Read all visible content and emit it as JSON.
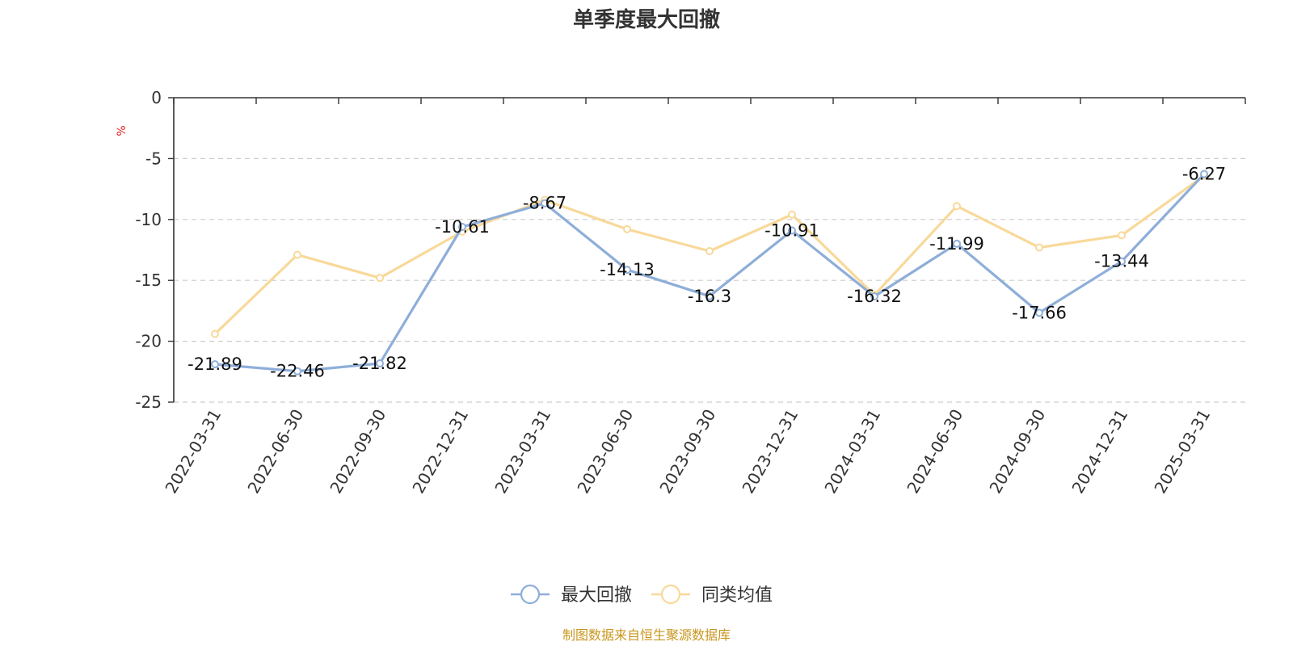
{
  "chart_data": {
    "type": "line",
    "title": "单季度最大回撤",
    "ylabel": "%",
    "ylim": [
      -25,
      0
    ],
    "yticks": [
      0,
      -5,
      -10,
      -15,
      -20,
      -25
    ],
    "categories": [
      "2022-03-31",
      "2022-06-30",
      "2022-09-30",
      "2022-12-31",
      "2023-03-31",
      "2023-06-30",
      "2023-09-30",
      "2023-12-31",
      "2024-03-31",
      "2024-06-30",
      "2024-09-30",
      "2024-12-31",
      "2025-03-31"
    ],
    "series": [
      {
        "name": "最大回撤",
        "color": "#8eaed9",
        "values": [
          -21.89,
          -22.46,
          -21.82,
          -10.61,
          -8.67,
          -14.13,
          -16.3,
          -10.91,
          -16.32,
          -11.99,
          -17.66,
          -13.44,
          -6.27
        ],
        "labels": [
          "-21.89",
          "-22.46",
          "-21.82",
          "-10.61",
          "-8.67",
          "-14.13",
          "-16.3",
          "-10.91",
          "-16.32",
          "-11.99",
          "-17.66",
          "-13.44",
          "-6.27"
        ]
      },
      {
        "name": "同类均值",
        "color": "#f8d99a",
        "values": [
          -19.4,
          -12.9,
          -14.8,
          -11.0,
          -8.4,
          -10.8,
          -12.6,
          -9.6,
          -16.2,
          -8.9,
          -12.3,
          -11.3,
          -6.4
        ]
      }
    ],
    "grid": true,
    "legend_position": "bottom-center"
  },
  "source_text": "制图数据来自恒生聚源数据库"
}
